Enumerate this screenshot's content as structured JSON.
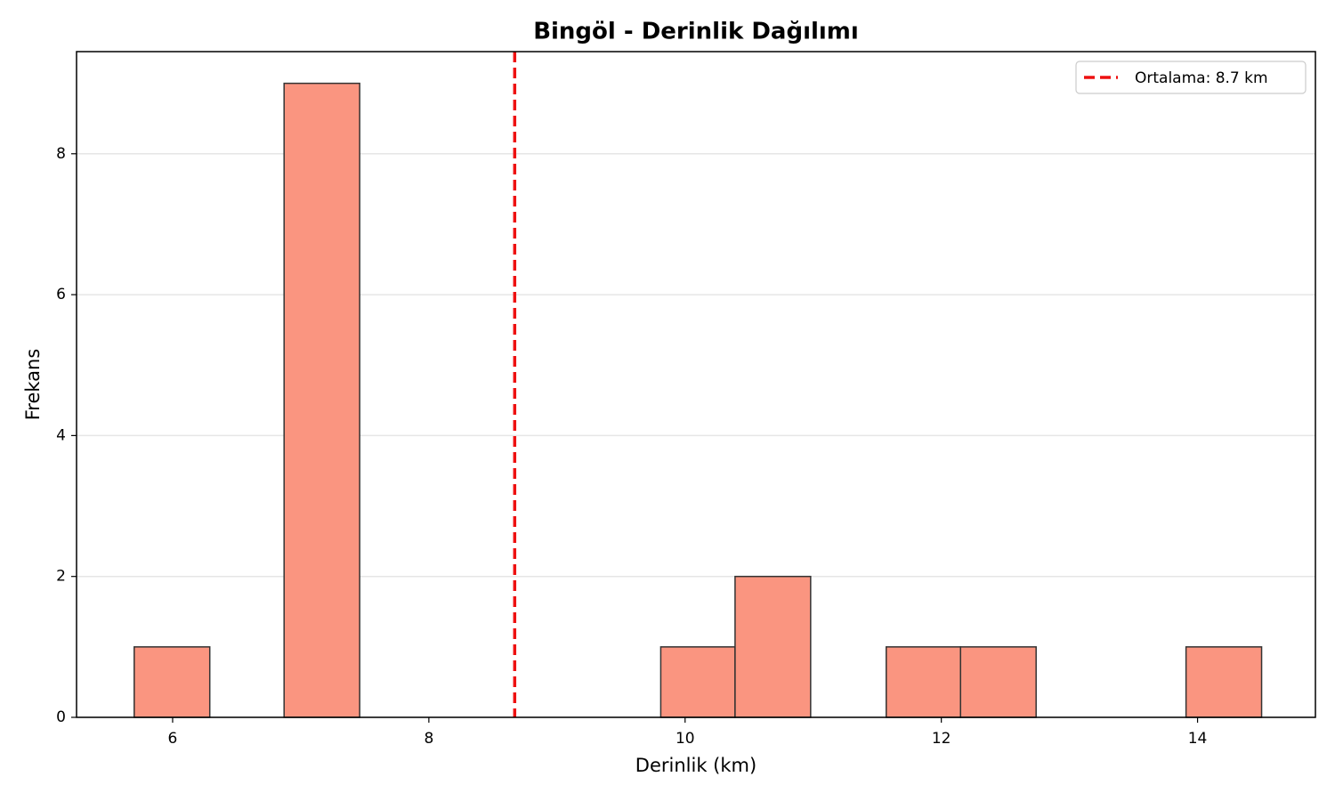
{
  "chart_data": {
    "type": "histogram",
    "title": "Bingöl - Derinlik Dağılımı",
    "x_label": "Derinlik (km)",
    "y_label": "Frekans",
    "bins": [
      5.7,
      6.29,
      6.87,
      7.46,
      8.05,
      8.63,
      9.22,
      9.81,
      10.39,
      10.98,
      11.57,
      12.15,
      12.74,
      13.33,
      13.91,
      14.5
    ],
    "counts": [
      1,
      0,
      9,
      0,
      0,
      0,
      0,
      1,
      2,
      0,
      1,
      1,
      0,
      0,
      1
    ],
    "color": "#fa9580",
    "edge_color": "#333333",
    "xlim": [
      5.25,
      14.92
    ],
    "ylim": [
      0,
      9.45
    ],
    "xticks": [
      6,
      8,
      10,
      12,
      14
    ],
    "yticks": [
      0,
      2,
      4,
      6,
      8
    ],
    "grid": "y",
    "mean_line": {
      "value": 8.67,
      "label": "Ortalama: 8.7 km",
      "color": "#ee1111"
    },
    "legend_position": "upper right"
  }
}
